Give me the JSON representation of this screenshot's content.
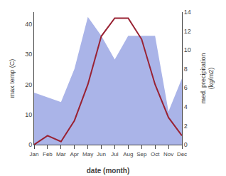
{
  "chart_data": {
    "type": "line",
    "categories": [
      "Jan",
      "Feb",
      "Mar",
      "Apr",
      "May",
      "Jun",
      "Jul",
      "Aug",
      "Sep",
      "Oct",
      "Nov",
      "Dec"
    ],
    "xlabel": "date (month)",
    "ylabel": "max temp (C)",
    "y2label": "med. precipitation\n(kg/m2)",
    "ylim": [
      0,
      44
    ],
    "yticks": [
      0,
      10,
      20,
      30,
      40
    ],
    "y2lim": [
      0,
      14
    ],
    "y2ticks": [
      0,
      2,
      4,
      6,
      8,
      10,
      12,
      14
    ],
    "grid": false,
    "series": [
      {
        "type": "area",
        "axis": "y2",
        "color": "#aab4e8",
        "values": [
          5.5,
          5.0,
          4.5,
          8.0,
          13.5,
          11.5,
          9.0,
          11.5,
          11.5,
          11.5,
          3.5,
          7.0
        ]
      },
      {
        "type": "line",
        "color": "#992233",
        "values": [
          0,
          3,
          1,
          8,
          20,
          36,
          42,
          42,
          35,
          20,
          9,
          3
        ]
      }
    ]
  }
}
